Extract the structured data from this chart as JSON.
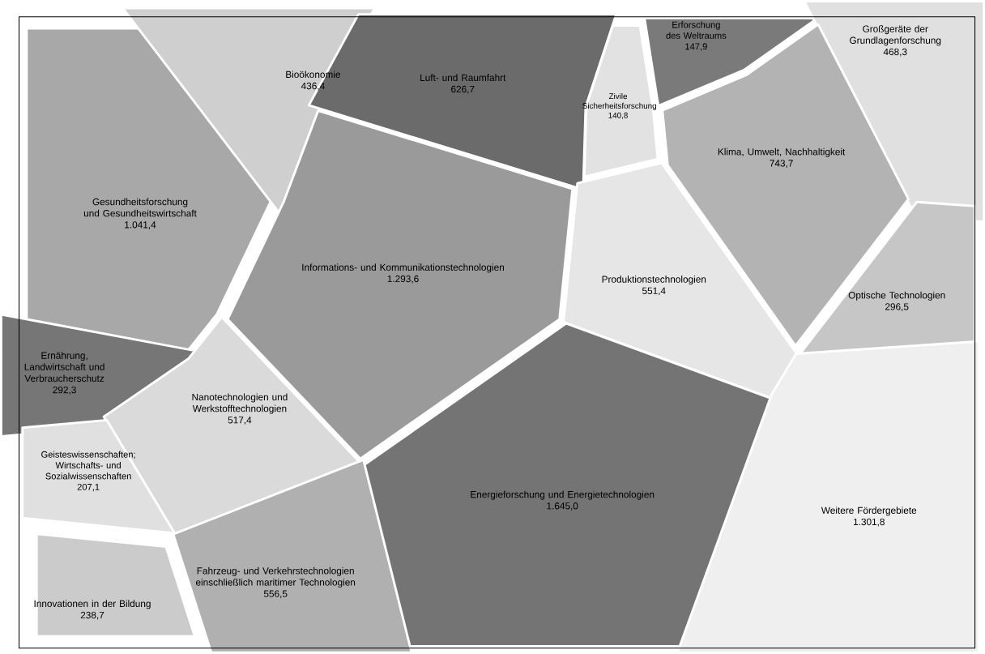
{
  "chart_data": {
    "type": "other",
    "categories": [
      "Gesundheitsforschung und Gesundheitswirtschaft",
      "Bioökonomie",
      "Luft- und Raumfahrt",
      "Zivile Sicherheitsforschung",
      "Erforschung des Weltraums",
      "Großgeräte der Grundlagenforschung",
      "Klima, Umwelt, Nachhaltigkeit",
      "Informations- und Kommunikationstechnologien",
      "Produktionstechnologien",
      "Optische Technologien",
      "Ernährung, Landwirtschaft und Verbraucherschutz",
      "Nanotechnologien und Werkstofftechnologien",
      "Energieforschung und Energietechnologien",
      "Weitere Fördergebiete",
      "Geisteswissenschaften; Wirtschafts- und Sozialwissenschaften",
      "Innovationen in der Bildung",
      "Fahrzeug- und Verkehrstechnologien einschließlich maritimer Technologien"
    ],
    "values": [
      1041.4,
      436.4,
      626.7,
      140.8,
      147.9,
      468.3,
      743.7,
      1293.6,
      551.4,
      296.5,
      292.3,
      517.4,
      1645.0,
      1301.8,
      207.1,
      238.7,
      556.5
    ],
    "value_labels": [
      "1.041,4",
      "436,4",
      "626,7",
      "140,8",
      "147,9",
      "468,3",
      "743,7",
      "1.293,6",
      "551,4",
      "296,5",
      "292,3",
      "517,4",
      "1.645,0",
      "1.301,8",
      "207,1",
      "238,7",
      "556,5"
    ],
    "colors": [
      "#a8a8a8",
      "#cfcfcf",
      "#6b6b6b",
      "#e2e2e2",
      "#7a7a7a",
      "#e0e0e0",
      "#b3b3b3",
      "#9a9a9a",
      "#e6e6e6",
      "#c6c6c6",
      "#767676",
      "#dadada",
      "#747474",
      "#efefef",
      "#e0e0e0",
      "#cbcbcb",
      "#b0b0b0"
    ]
  }
}
